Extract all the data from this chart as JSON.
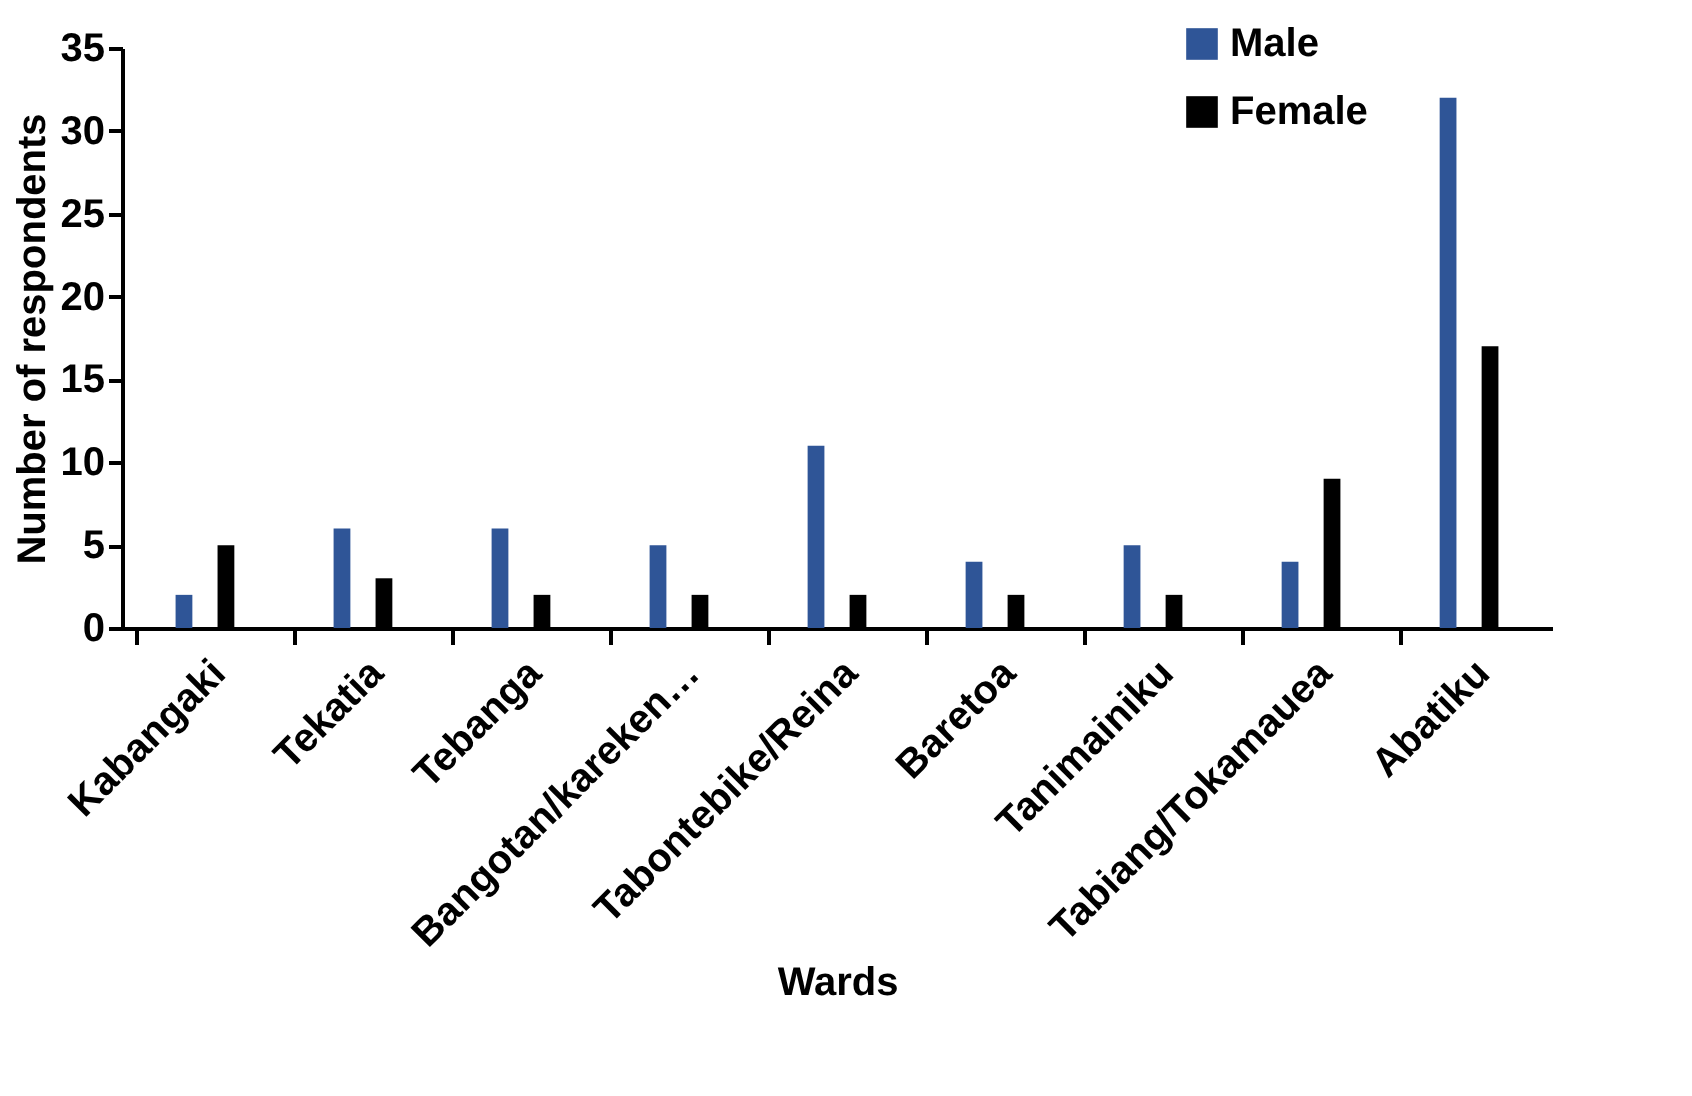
{
  "chart_data": {
    "type": "bar",
    "xlabel": "Wards",
    "ylabel": "Number of respondents",
    "categories": [
      "Kabangaki",
      "Tekatia",
      "Tebanga",
      "Bangotan/kareken…",
      "Tabontebike/Reina",
      "Baretoa",
      "Tanimainiku",
      "Tabiang/Tokamauea",
      "Abatiku"
    ],
    "series": [
      {
        "name": "Male",
        "color": "#2f5597",
        "values": [
          2,
          6,
          6,
          5,
          11,
          4,
          5,
          4,
          32
        ]
      },
      {
        "name": "Female",
        "color": "#000000",
        "values": [
          5,
          3,
          2,
          2,
          2,
          2,
          2,
          9,
          17
        ]
      }
    ],
    "ylim": [
      0,
      35
    ],
    "yticks": [
      0,
      5,
      10,
      15,
      20,
      25,
      30,
      35
    ],
    "grid": false,
    "legend": "top right"
  }
}
